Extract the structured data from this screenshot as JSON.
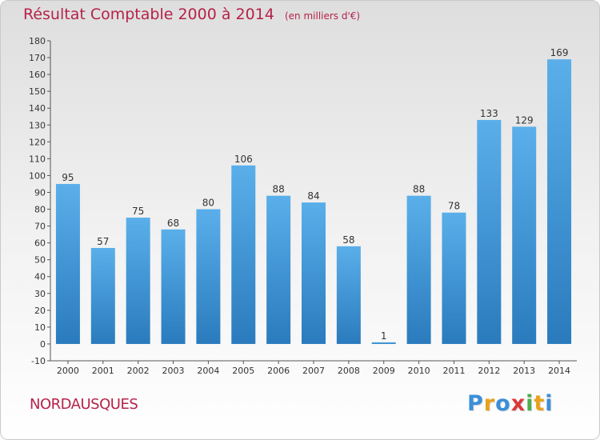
{
  "header": {
    "title": "Résultat Comptable 2000 à 2014",
    "unit": "(en milliers d'€)"
  },
  "location": "NORDAUSQUES",
  "logo": {
    "letters": [
      "P",
      "r",
      "o",
      "x",
      "i",
      "t",
      "i"
    ],
    "colors": [
      "#3a8fd8",
      "#e8a11c",
      "#3a8fd8",
      "#d93a3a",
      "#4cae4c",
      "#e8a11c",
      "#3a8fd8"
    ]
  },
  "chart_data": {
    "type": "bar",
    "categories": [
      "2000",
      "2001",
      "2002",
      "2003",
      "2004",
      "2005",
      "2006",
      "2007",
      "2008",
      "2009",
      "2010",
      "2011",
      "2012",
      "2013",
      "2014"
    ],
    "values": [
      95,
      57,
      75,
      68,
      80,
      106,
      88,
      84,
      58,
      1,
      88,
      78,
      133,
      129,
      169
    ],
    "ylim": [
      -10,
      180
    ],
    "yticks": [
      -10,
      0,
      10,
      20,
      30,
      40,
      50,
      60,
      70,
      80,
      90,
      100,
      110,
      120,
      130,
      140,
      150,
      160,
      170,
      180
    ],
    "grid": false,
    "bar_color": "#3d92d4"
  }
}
